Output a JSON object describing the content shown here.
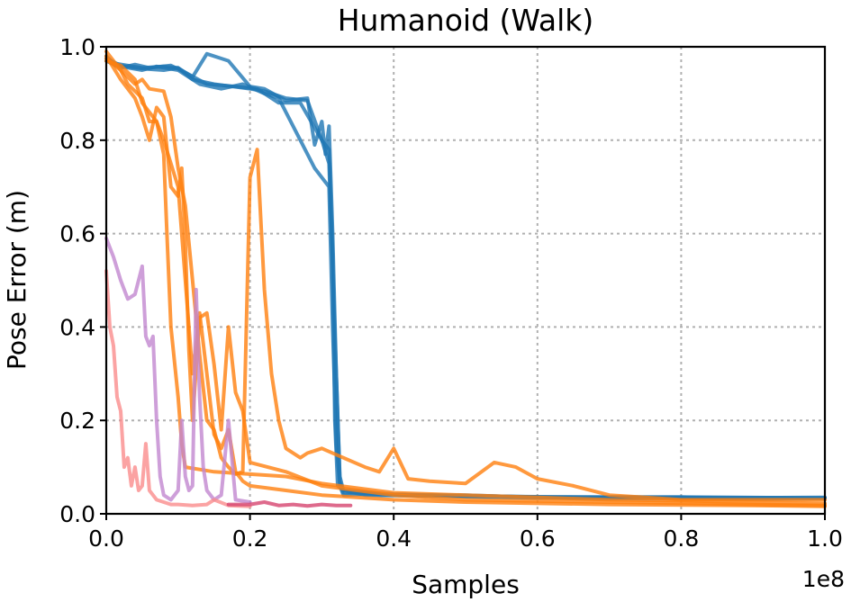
{
  "chart_data": {
    "type": "line",
    "title": "Humanoid (Walk)",
    "xlabel": "Samples",
    "ylabel": "Pose Error (m)",
    "x_multiplier": "1e8",
    "xlim": [
      0,
      1.0
    ],
    "ylim": [
      0,
      1.0
    ],
    "xticks": [
      0.0,
      0.2,
      0.4,
      0.6,
      0.8,
      1.0
    ],
    "yticks": [
      0.0,
      0.2,
      0.4,
      0.6,
      0.8,
      1.0
    ],
    "xtick_labels": [
      "0.0",
      "0.2",
      "0.4",
      "0.6",
      "0.8",
      "1.0"
    ],
    "ytick_labels": [
      "0.0",
      "0.2",
      "0.4",
      "0.6",
      "0.8",
      "1.0"
    ],
    "grid": true,
    "colors": {
      "blue": "#1f77b4",
      "orange": "#ff7f0e",
      "purple": "#c287cf",
      "pink": "#fa8c8c",
      "crimson": "#d6456f"
    },
    "series": [
      {
        "color": "blue",
        "points": [
          [
            0,
            0.98
          ],
          [
            0.01,
            0.965
          ],
          [
            0.03,
            0.96
          ],
          [
            0.05,
            0.955
          ],
          [
            0.08,
            0.958
          ],
          [
            0.1,
            0.955
          ],
          [
            0.12,
            0.93
          ],
          [
            0.15,
            0.92
          ],
          [
            0.2,
            0.91
          ],
          [
            0.22,
            0.905
          ],
          [
            0.25,
            0.89
          ],
          [
            0.28,
            0.885
          ],
          [
            0.3,
            0.8
          ],
          [
            0.31,
            0.75
          ],
          [
            0.32,
            0.3
          ],
          [
            0.325,
            0.07
          ],
          [
            0.33,
            0.045
          ],
          [
            0.35,
            0.045
          ],
          [
            0.4,
            0.04
          ],
          [
            0.5,
            0.04
          ],
          [
            0.6,
            0.035
          ],
          [
            0.7,
            0.033
          ],
          [
            0.8,
            0.032
          ],
          [
            0.9,
            0.032
          ],
          [
            1.0,
            0.033
          ]
        ]
      },
      {
        "color": "blue",
        "points": [
          [
            0,
            0.975
          ],
          [
            0.02,
            0.96
          ],
          [
            0.04,
            0.955
          ],
          [
            0.06,
            0.952
          ],
          [
            0.08,
            0.95
          ],
          [
            0.1,
            0.955
          ],
          [
            0.12,
            0.935
          ],
          [
            0.14,
            0.985
          ],
          [
            0.16,
            0.975
          ],
          [
            0.17,
            0.97
          ],
          [
            0.2,
            0.915
          ],
          [
            0.22,
            0.91
          ],
          [
            0.25,
            0.885
          ],
          [
            0.28,
            0.89
          ],
          [
            0.29,
            0.79
          ],
          [
            0.3,
            0.84
          ],
          [
            0.305,
            0.77
          ],
          [
            0.31,
            0.83
          ],
          [
            0.315,
            0.6
          ],
          [
            0.32,
            0.3
          ],
          [
            0.325,
            0.08
          ],
          [
            0.33,
            0.05
          ],
          [
            0.36,
            0.04
          ],
          [
            0.45,
            0.038
          ],
          [
            0.6,
            0.034
          ],
          [
            0.8,
            0.035
          ],
          [
            1.0,
            0.033
          ]
        ]
      },
      {
        "color": "blue",
        "points": [
          [
            0,
            0.97
          ],
          [
            0.02,
            0.958
          ],
          [
            0.05,
            0.95
          ],
          [
            0.07,
            0.958
          ],
          [
            0.1,
            0.95
          ],
          [
            0.13,
            0.92
          ],
          [
            0.16,
            0.91
          ],
          [
            0.19,
            0.92
          ],
          [
            0.22,
            0.9
          ],
          [
            0.24,
            0.89
          ],
          [
            0.27,
            0.8
          ],
          [
            0.29,
            0.74
          ],
          [
            0.31,
            0.7
          ],
          [
            0.315,
            0.4
          ],
          [
            0.32,
            0.15
          ],
          [
            0.325,
            0.06
          ],
          [
            0.33,
            0.04
          ],
          [
            0.36,
            0.042
          ],
          [
            0.5,
            0.038
          ],
          [
            0.7,
            0.035
          ],
          [
            0.85,
            0.034
          ],
          [
            1.0,
            0.035
          ]
        ]
      },
      {
        "color": "blue",
        "points": [
          [
            0,
            0.97
          ],
          [
            0.02,
            0.955
          ],
          [
            0.04,
            0.962
          ],
          [
            0.06,
            0.955
          ],
          [
            0.09,
            0.96
          ],
          [
            0.11,
            0.945
          ],
          [
            0.14,
            0.92
          ],
          [
            0.18,
            0.915
          ],
          [
            0.21,
            0.91
          ],
          [
            0.24,
            0.88
          ],
          [
            0.27,
            0.88
          ],
          [
            0.3,
            0.8
          ],
          [
            0.31,
            0.78
          ],
          [
            0.315,
            0.55
          ],
          [
            0.318,
            0.2
          ],
          [
            0.322,
            0.06
          ],
          [
            0.33,
            0.05
          ],
          [
            0.4,
            0.042
          ],
          [
            0.6,
            0.036
          ],
          [
            0.8,
            0.036
          ],
          [
            1.0,
            0.034
          ]
        ]
      },
      {
        "color": "orange",
        "points": [
          [
            0,
            0.99
          ],
          [
            0.02,
            0.95
          ],
          [
            0.03,
            0.92
          ],
          [
            0.05,
            0.89
          ],
          [
            0.06,
            0.84
          ],
          [
            0.07,
            0.84
          ],
          [
            0.08,
            0.77
          ],
          [
            0.085,
            0.58
          ],
          [
            0.09,
            0.4
          ],
          [
            0.1,
            0.25
          ],
          [
            0.105,
            0.15
          ],
          [
            0.11,
            0.1
          ],
          [
            0.15,
            0.09
          ],
          [
            0.2,
            0.085
          ],
          [
            0.25,
            0.08
          ],
          [
            0.3,
            0.065
          ],
          [
            0.35,
            0.055
          ],
          [
            0.4,
            0.045
          ],
          [
            0.5,
            0.04
          ],
          [
            0.6,
            0.035
          ],
          [
            0.7,
            0.03
          ],
          [
            0.8,
            0.028
          ],
          [
            0.9,
            0.025
          ],
          [
            1.0,
            0.022
          ]
        ]
      },
      {
        "color": "orange",
        "points": [
          [
            0,
            0.98
          ],
          [
            0.02,
            0.93
          ],
          [
            0.04,
            0.89
          ],
          [
            0.05,
            0.85
          ],
          [
            0.06,
            0.8
          ],
          [
            0.07,
            0.87
          ],
          [
            0.08,
            0.85
          ],
          [
            0.09,
            0.7
          ],
          [
            0.1,
            0.68
          ],
          [
            0.105,
            0.74
          ],
          [
            0.11,
            0.58
          ],
          [
            0.115,
            0.35
          ],
          [
            0.12,
            0.2
          ],
          [
            0.13,
            0.42
          ],
          [
            0.14,
            0.43
          ],
          [
            0.15,
            0.32
          ],
          [
            0.16,
            0.18
          ],
          [
            0.17,
            0.4
          ],
          [
            0.18,
            0.26
          ],
          [
            0.19,
            0.22
          ],
          [
            0.2,
            0.11
          ],
          [
            0.25,
            0.09
          ],
          [
            0.3,
            0.06
          ],
          [
            0.4,
            0.04
          ],
          [
            0.5,
            0.03
          ],
          [
            0.7,
            0.025
          ],
          [
            0.9,
            0.02
          ],
          [
            1.0,
            0.018
          ]
        ]
      },
      {
        "color": "orange",
        "points": [
          [
            0,
            0.97
          ],
          [
            0.02,
            0.96
          ],
          [
            0.04,
            0.93
          ],
          [
            0.05,
            0.88
          ],
          [
            0.06,
            0.86
          ],
          [
            0.07,
            0.84
          ],
          [
            0.08,
            0.8
          ],
          [
            0.09,
            0.75
          ],
          [
            0.1,
            0.7
          ],
          [
            0.11,
            0.5
          ],
          [
            0.12,
            0.3
          ],
          [
            0.13,
            0.43
          ],
          [
            0.14,
            0.3
          ],
          [
            0.15,
            0.17
          ],
          [
            0.16,
            0.14
          ],
          [
            0.17,
            0.18
          ],
          [
            0.18,
            0.09
          ],
          [
            0.19,
            0.07
          ],
          [
            0.2,
            0.06
          ],
          [
            0.25,
            0.05
          ],
          [
            0.3,
            0.04
          ],
          [
            0.4,
            0.03
          ],
          [
            0.5,
            0.025
          ],
          [
            0.7,
            0.02
          ],
          [
            0.9,
            0.018
          ],
          [
            1.0,
            0.016
          ]
        ]
      },
      {
        "color": "orange",
        "points": [
          [
            0,
            0.975
          ],
          [
            0.02,
            0.95
          ],
          [
            0.04,
            0.92
          ],
          [
            0.05,
            0.93
          ],
          [
            0.06,
            0.91
          ],
          [
            0.08,
            0.905
          ],
          [
            0.09,
            0.85
          ],
          [
            0.1,
            0.74
          ],
          [
            0.11,
            0.66
          ],
          [
            0.12,
            0.5
          ],
          [
            0.13,
            0.34
          ],
          [
            0.14,
            0.2
          ],
          [
            0.15,
            0.18
          ],
          [
            0.16,
            0.12
          ],
          [
            0.17,
            0.1
          ],
          [
            0.18,
            0.085
          ],
          [
            0.19,
            0.09
          ],
          [
            0.2,
            0.72
          ],
          [
            0.21,
            0.78
          ],
          [
            0.22,
            0.48
          ],
          [
            0.23,
            0.3
          ],
          [
            0.24,
            0.2
          ],
          [
            0.25,
            0.14
          ],
          [
            0.27,
            0.12
          ],
          [
            0.28,
            0.13
          ],
          [
            0.3,
            0.14
          ],
          [
            0.33,
            0.12
          ],
          [
            0.36,
            0.1
          ],
          [
            0.38,
            0.09
          ],
          [
            0.4,
            0.14
          ],
          [
            0.42,
            0.075
          ],
          [
            0.45,
            0.07
          ],
          [
            0.5,
            0.065
          ],
          [
            0.54,
            0.11
          ],
          [
            0.57,
            0.1
          ],
          [
            0.6,
            0.075
          ],
          [
            0.65,
            0.06
          ],
          [
            0.7,
            0.04
          ],
          [
            0.75,
            0.035
          ],
          [
            0.8,
            0.03
          ],
          [
            0.9,
            0.03
          ],
          [
            1.0,
            0.03
          ]
        ]
      },
      {
        "color": "purple",
        "points": [
          [
            0,
            0.59
          ],
          [
            0.01,
            0.55
          ],
          [
            0.02,
            0.5
          ],
          [
            0.03,
            0.46
          ],
          [
            0.04,
            0.47
          ],
          [
            0.045,
            0.5
          ],
          [
            0.05,
            0.53
          ],
          [
            0.055,
            0.38
          ],
          [
            0.06,
            0.36
          ],
          [
            0.065,
            0.38
          ],
          [
            0.07,
            0.2
          ],
          [
            0.075,
            0.08
          ],
          [
            0.08,
            0.04
          ],
          [
            0.09,
            0.03
          ],
          [
            0.1,
            0.05
          ],
          [
            0.105,
            0.2
          ],
          [
            0.11,
            0.08
          ],
          [
            0.115,
            0.05
          ],
          [
            0.12,
            0.06
          ],
          [
            0.125,
            0.48
          ],
          [
            0.13,
            0.25
          ],
          [
            0.135,
            0.1
          ],
          [
            0.14,
            0.05
          ],
          [
            0.15,
            0.03
          ],
          [
            0.16,
            0.04
          ],
          [
            0.17,
            0.2
          ],
          [
            0.18,
            0.03
          ],
          [
            0.2,
            0.025
          ]
        ]
      },
      {
        "color": "pink",
        "points": [
          [
            0,
            0.52
          ],
          [
            0.005,
            0.4
          ],
          [
            0.01,
            0.36
          ],
          [
            0.015,
            0.25
          ],
          [
            0.02,
            0.22
          ],
          [
            0.025,
            0.1
          ],
          [
            0.03,
            0.12
          ],
          [
            0.035,
            0.06
          ],
          [
            0.04,
            0.1
          ],
          [
            0.045,
            0.05
          ],
          [
            0.05,
            0.06
          ],
          [
            0.055,
            0.15
          ],
          [
            0.06,
            0.05
          ],
          [
            0.065,
            0.04
          ],
          [
            0.07,
            0.03
          ],
          [
            0.08,
            0.025
          ],
          [
            0.09,
            0.02
          ],
          [
            0.1,
            0.02
          ],
          [
            0.12,
            0.018
          ],
          [
            0.14,
            0.02
          ],
          [
            0.15,
            0.03
          ],
          [
            0.17,
            0.018
          ],
          [
            0.2,
            0.016
          ]
        ]
      },
      {
        "color": "crimson",
        "points": [
          [
            0.17,
            0.02
          ],
          [
            0.2,
            0.02
          ],
          [
            0.22,
            0.025
          ],
          [
            0.24,
            0.018
          ],
          [
            0.26,
            0.02
          ],
          [
            0.28,
            0.017
          ],
          [
            0.3,
            0.02
          ],
          [
            0.32,
            0.018
          ],
          [
            0.34,
            0.018
          ]
        ]
      }
    ]
  }
}
